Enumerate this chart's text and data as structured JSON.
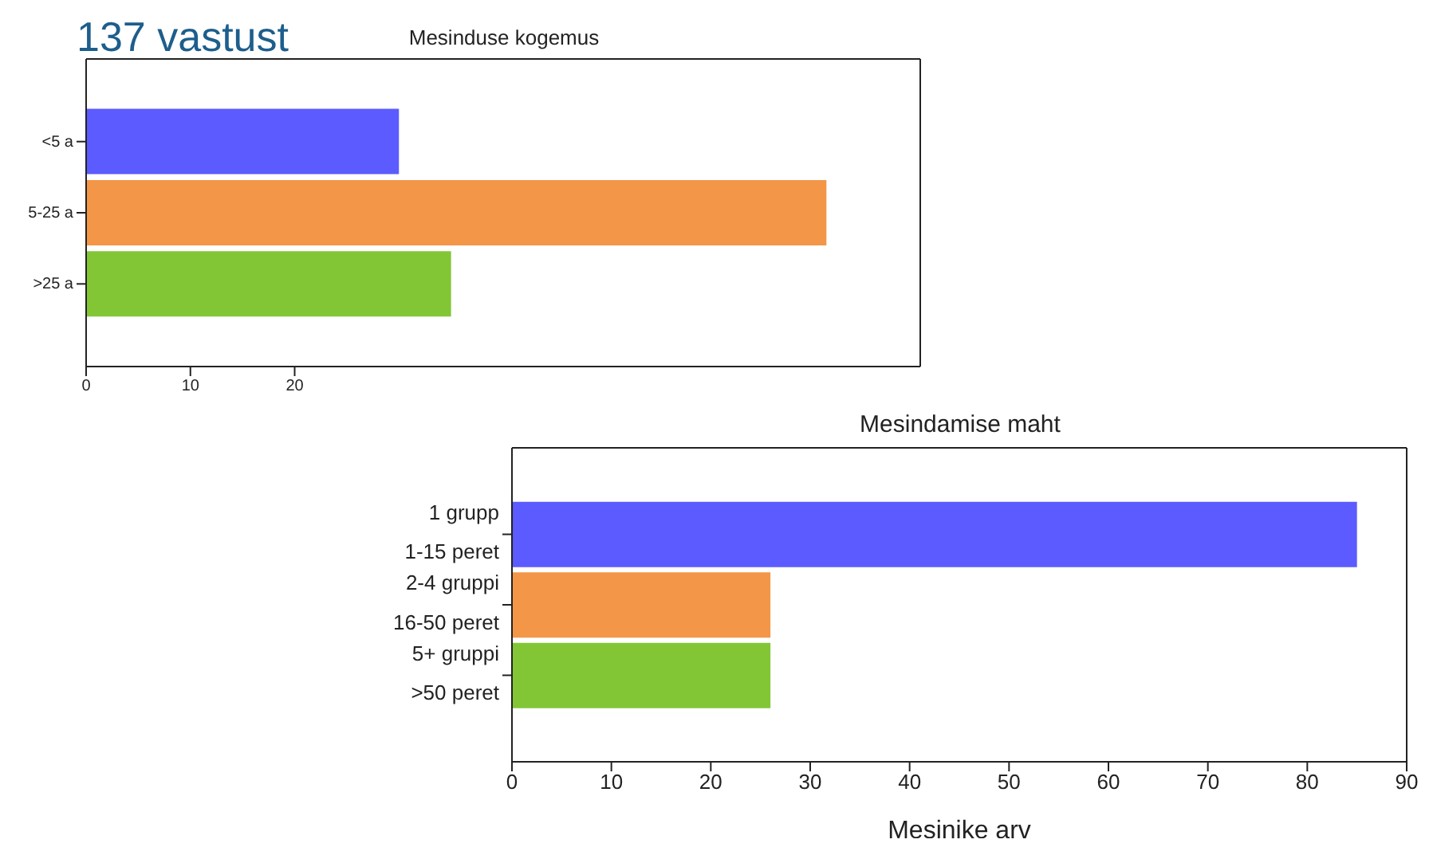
{
  "chart_data": [
    {
      "type": "bar",
      "orientation": "horizontal",
      "title": "Mesinduse kogemus",
      "annotations": [
        "137 vastust"
      ],
      "categories": [
        "<5 a",
        "5-25 a",
        ">25 a"
      ],
      "values": [
        30,
        71,
        35
      ],
      "colors": [
        "#5b5bff",
        "#f39647",
        "#82c636"
      ],
      "xlim": [
        0,
        80
      ],
      "xticks": [
        0,
        10,
        20
      ],
      "grid": false
    },
    {
      "type": "bar",
      "orientation": "horizontal",
      "title": "Mesindamise maht",
      "xlabel": "Mesinike arv",
      "categories": [
        "1 grupp\n1-15 peret",
        "2-4 gruppi\n16-50 peret",
        "5+ gruppi\n>50 peret"
      ],
      "values": [
        85,
        26,
        26
      ],
      "colors": [
        "#5b5bff",
        "#f39647",
        "#82c636"
      ],
      "xlim": [
        0,
        90
      ],
      "xticks": [
        0,
        10,
        20,
        30,
        40,
        50,
        60,
        70,
        80,
        90
      ],
      "grid": false
    }
  ]
}
